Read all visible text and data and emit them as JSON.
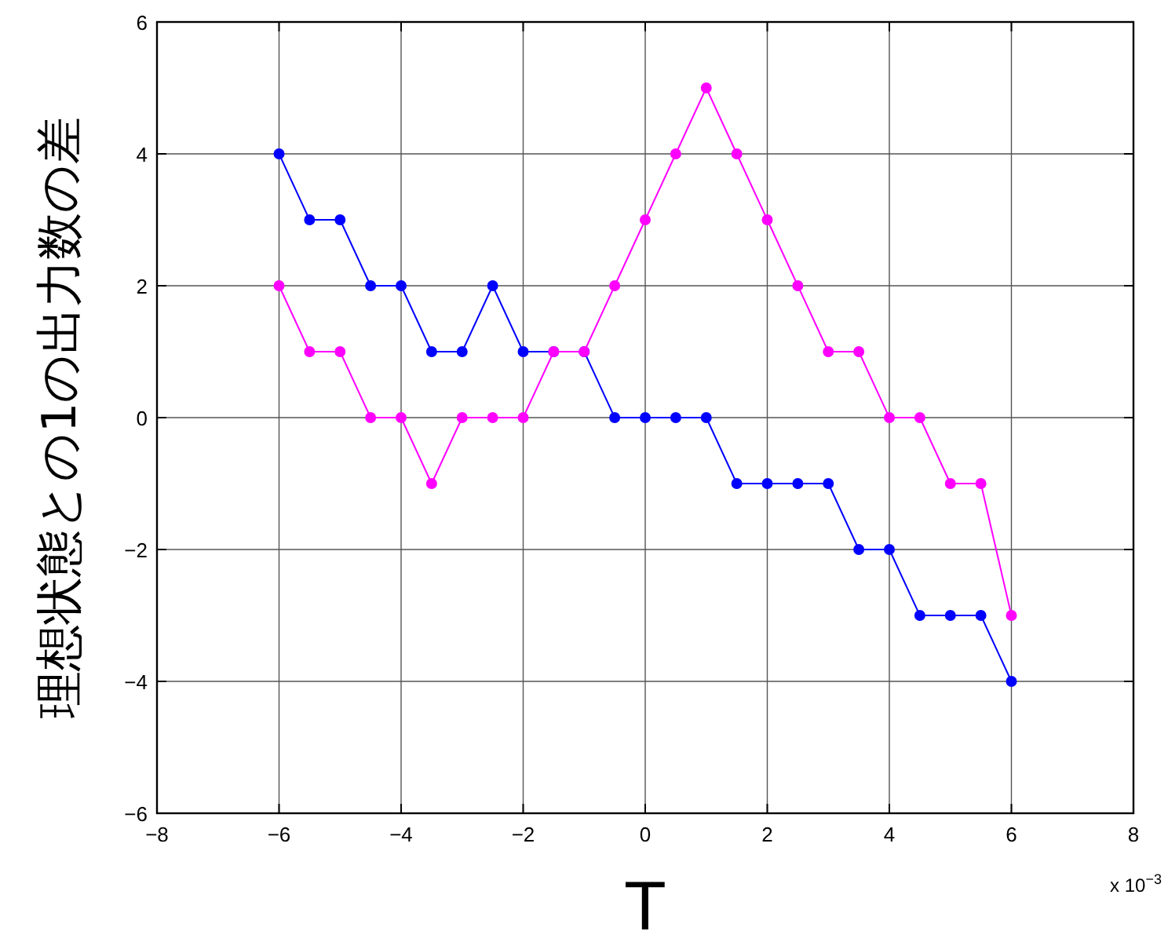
{
  "chart_data": {
    "type": "line",
    "xlabel": "T",
    "ylabel": "理想状態との1の出力数の差",
    "x": [
      -6,
      -5.5,
      -5,
      -4.5,
      -4,
      -3.5,
      -3,
      -2.5,
      -2,
      -1.5,
      -1,
      -0.5,
      0,
      0.5,
      1,
      1.5,
      2,
      2.5,
      3,
      3.5,
      4,
      4.5,
      5,
      5.5,
      6
    ],
    "series": [
      {
        "color": "#0000ff",
        "values": [
          4,
          3,
          3,
          2,
          2,
          1,
          1,
          2,
          1,
          1,
          1,
          0,
          0,
          0,
          0,
          -1,
          -1,
          -1,
          -1,
          -2,
          -2,
          -3,
          -3,
          -3,
          -4
        ]
      },
      {
        "color": "#ff00ff",
        "values": [
          2,
          1,
          1,
          0,
          0,
          -1,
          0,
          0,
          0,
          1,
          1,
          2,
          3,
          4,
          5,
          4,
          3,
          2,
          1,
          1,
          0,
          0,
          -1,
          -1,
          -3
        ]
      }
    ],
    "xlim": [
      -8,
      8
    ],
    "xticks": [
      {
        "value": -8,
        "label": "−8"
      },
      {
        "value": -6,
        "label": "−6"
      },
      {
        "value": -4,
        "label": "−4"
      },
      {
        "value": -2,
        "label": "−2"
      },
      0,
      2,
      4,
      6,
      8
    ],
    "ylim": [
      -6,
      6
    ],
    "yticks": [
      {
        "value": -6,
        "label": "−6"
      },
      {
        "value": -4,
        "label": "−4"
      },
      {
        "value": -2,
        "label": "−2"
      },
      0,
      2,
      4,
      6
    ],
    "annotations": [
      "x 10$^{−3}$"
    ],
    "grid": true,
    "marker": "circle",
    "line_style": "solid"
  }
}
